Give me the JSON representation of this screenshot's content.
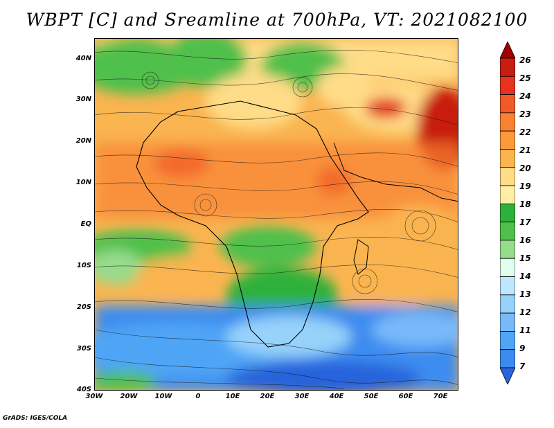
{
  "title": "WBPT [C] and Sreamline at 700hPa, VT: 2021082100",
  "credit": "GrADS: IGES/COLA",
  "map": {
    "variable": "Wet-bulb potential temperature [C] with streamlines, 700 hPa",
    "lon_range": [
      -30,
      75
    ],
    "lat_range": [
      -40,
      45
    ],
    "lat_labels": [
      "40N",
      "30N",
      "20N",
      "10N",
      "EQ",
      "10S",
      "20S",
      "30S",
      "40S"
    ],
    "lat_values": [
      40,
      30,
      20,
      10,
      0,
      -10,
      -20,
      -30,
      -40
    ],
    "lon_labels": [
      "30W",
      "20W",
      "10W",
      "0",
      "10E",
      "20E",
      "30E",
      "40E",
      "50E",
      "60E",
      "70E"
    ],
    "lon_values": [
      -30,
      -20,
      -10,
      0,
      10,
      20,
      30,
      40,
      50,
      60,
      70
    ]
  },
  "colorbar": {
    "levels": [
      "26",
      "25",
      "24",
      "23",
      "22",
      "21",
      "20",
      "19",
      "18",
      "17",
      "16",
      "15",
      "14",
      "13",
      "12",
      "11",
      "9",
      "7"
    ],
    "colors": [
      "#a00000",
      "#c81e0f",
      "#e6321e",
      "#f05a28",
      "#f88232",
      "#fa9a3c",
      "#fab450",
      "#ffdc87",
      "#ffefa5",
      "#2eb13a",
      "#50c04c",
      "#96dc8c",
      "#e1fff0",
      "#bee6ff",
      "#96d2fa",
      "#78b9fa",
      "#50a5f5",
      "#3c8cf0",
      "#2864dc"
    ]
  }
}
